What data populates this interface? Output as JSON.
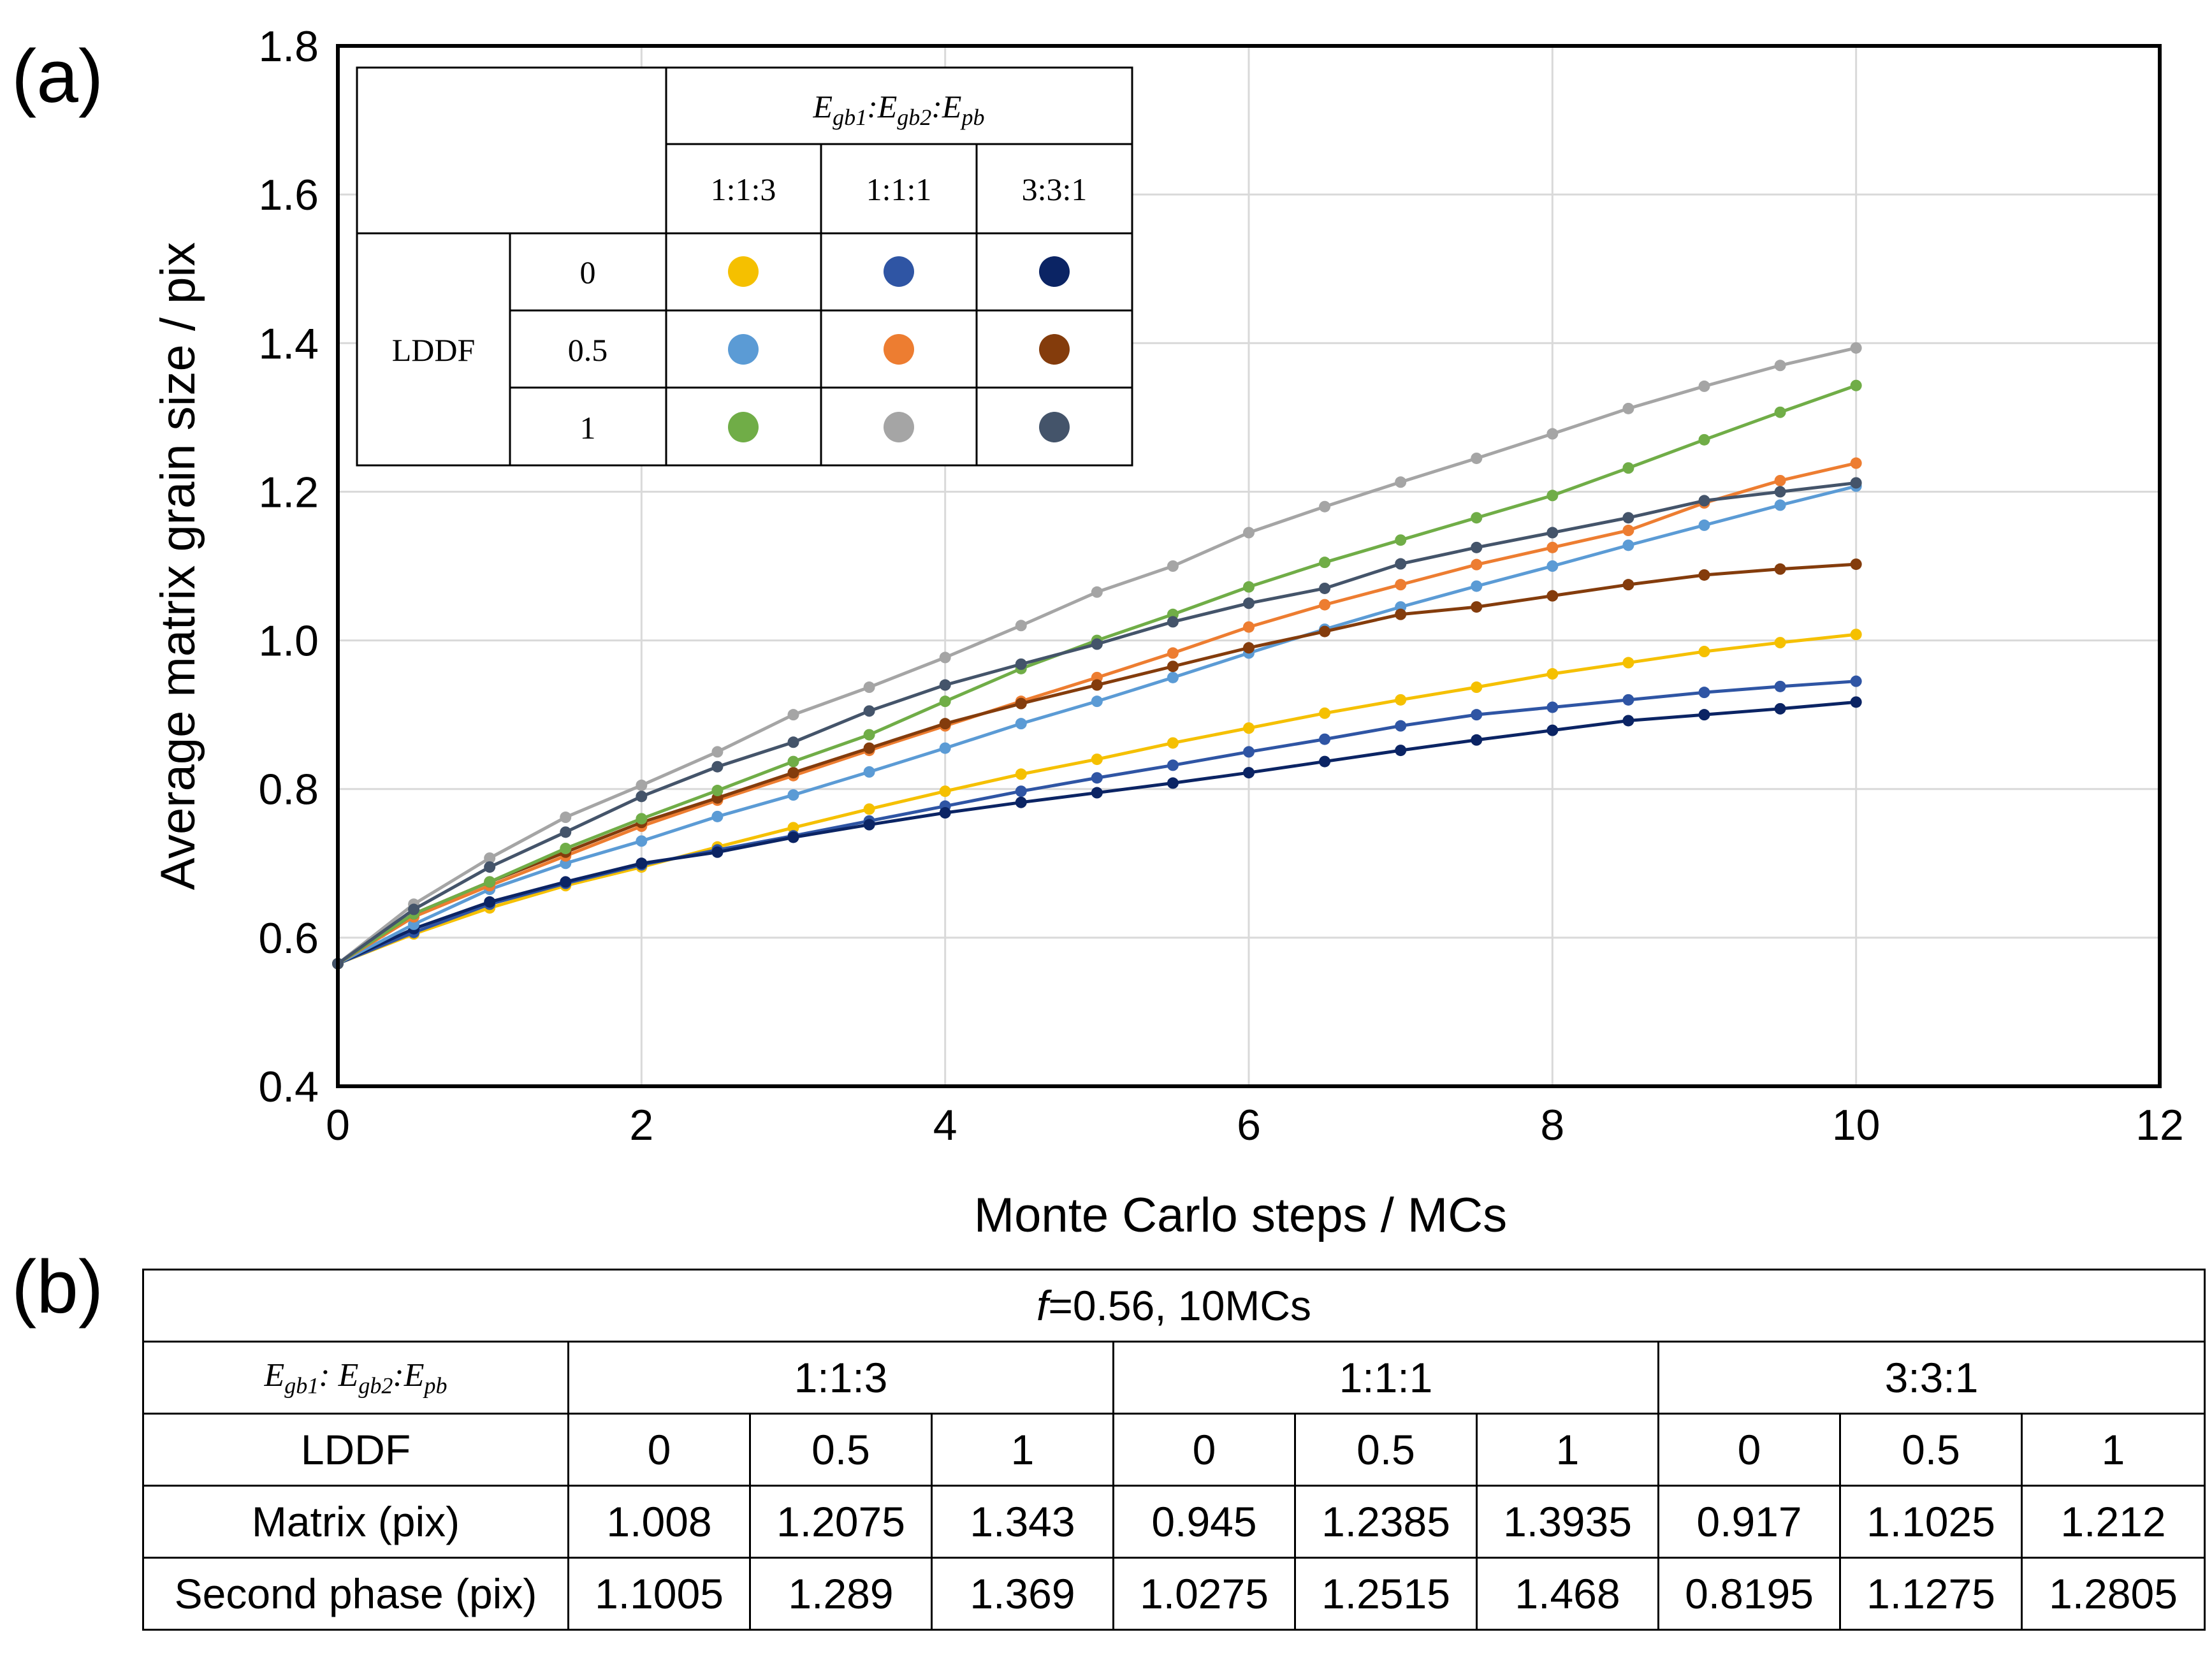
{
  "panel_a_label": "(a)",
  "panel_b_label": "(b)",
  "chart_data": {
    "type": "line",
    "xlabel": "Monte Carlo steps / MCs",
    "ylabel": "Average matrix grain size / pix",
    "xlim": [
      0,
      12
    ],
    "ylim": [
      0.4,
      1.8
    ],
    "xticks": [
      "0",
      "2",
      "4",
      "6",
      "8",
      "10",
      "12"
    ],
    "yticks": [
      "0.4",
      "0.6",
      "0.8",
      "1.0",
      "1.2",
      "1.4",
      "1.6",
      "1.8"
    ],
    "grid": true,
    "x": [
      0,
      0.5,
      1,
      1.5,
      2,
      2.5,
      3,
      3.5,
      4,
      4.5,
      5,
      5.5,
      6,
      6.5,
      7,
      7.5,
      8,
      8.5,
      9,
      9.5,
      10
    ],
    "series": [
      {
        "color": "#f5c000",
        "values": [
          0.565,
          0.605,
          0.64,
          0.67,
          0.695,
          0.722,
          0.748,
          0.773,
          0.797,
          0.82,
          0.84,
          0.862,
          0.882,
          0.902,
          0.92,
          0.937,
          0.955,
          0.97,
          0.985,
          0.997,
          1.008
        ]
      },
      {
        "color": "#2f55a4",
        "values": [
          0.565,
          0.607,
          0.645,
          0.673,
          0.698,
          0.718,
          0.737,
          0.757,
          0.777,
          0.797,
          0.815,
          0.832,
          0.85,
          0.867,
          0.885,
          0.9,
          0.91,
          0.92,
          0.93,
          0.938,
          0.945
        ]
      },
      {
        "color": "#0b2464",
        "values": [
          0.565,
          0.612,
          0.648,
          0.675,
          0.7,
          0.715,
          0.735,
          0.752,
          0.768,
          0.782,
          0.795,
          0.808,
          0.822,
          0.837,
          0.852,
          0.866,
          0.879,
          0.892,
          0.9,
          0.908,
          0.917
        ]
      },
      {
        "color": "#5b9bd5",
        "values": [
          0.565,
          0.618,
          0.665,
          0.7,
          0.73,
          0.763,
          0.792,
          0.823,
          0.855,
          0.888,
          0.918,
          0.95,
          0.983,
          1.015,
          1.045,
          1.073,
          1.1,
          1.128,
          1.155,
          1.182,
          1.2075
        ]
      },
      {
        "color": "#ed7d31",
        "values": [
          0.565,
          0.628,
          0.67,
          0.71,
          0.75,
          0.785,
          0.818,
          0.852,
          0.885,
          0.918,
          0.95,
          0.983,
          1.018,
          1.048,
          1.075,
          1.102,
          1.125,
          1.148,
          1.185,
          1.215,
          1.2385
        ]
      },
      {
        "color": "#843c0c",
        "values": [
          0.565,
          0.632,
          0.675,
          0.715,
          0.755,
          0.788,
          0.822,
          0.855,
          0.888,
          0.915,
          0.94,
          0.965,
          0.99,
          1.012,
          1.035,
          1.045,
          1.06,
          1.075,
          1.088,
          1.096,
          1.1025
        ]
      },
      {
        "color": "#70ad47",
        "values": [
          0.565,
          0.632,
          0.675,
          0.72,
          0.76,
          0.798,
          0.837,
          0.873,
          0.918,
          0.962,
          1.0,
          1.035,
          1.072,
          1.105,
          1.135,
          1.165,
          1.195,
          1.232,
          1.27,
          1.307,
          1.343
        ]
      },
      {
        "color": "#a5a5a5",
        "values": [
          0.565,
          0.645,
          0.707,
          0.762,
          0.805,
          0.85,
          0.9,
          0.937,
          0.977,
          1.02,
          1.065,
          1.1,
          1.145,
          1.18,
          1.213,
          1.245,
          1.278,
          1.312,
          1.342,
          1.37,
          1.3935
        ]
      },
      {
        "color": "#44546a",
        "values": [
          0.565,
          0.638,
          0.695,
          0.742,
          0.79,
          0.83,
          0.863,
          0.905,
          0.94,
          0.968,
          0.995,
          1.025,
          1.05,
          1.07,
          1.103,
          1.125,
          1.145,
          1.165,
          1.188,
          1.2,
          1.212
        ]
      }
    ]
  },
  "legend": {
    "col_title": {
      "main": "E",
      "subs": [
        "gb1",
        "gb2",
        "pb"
      ]
    },
    "col_headers": [
      "1:1:3",
      "1:1:1",
      "3:3:1"
    ],
    "row_title": "LDDF",
    "row_headers": [
      "0",
      "0.5",
      "1"
    ],
    "dot_colors": [
      [
        "#f5c000",
        "#2f55a4",
        "#0b2464"
      ],
      [
        "#5b9bd5",
        "#ed7d31",
        "#843c0c"
      ],
      [
        "#70ad47",
        "#a5a5a5",
        "#44546a"
      ]
    ]
  },
  "table_b": {
    "caption_f": "f",
    "caption_rest": "=0.56, 10MCs",
    "ratio_label": {
      "main": "E",
      "subs": [
        "gb1",
        "gb2",
        "pb"
      ]
    },
    "ratios": [
      "1:1:3",
      "1:1:1",
      "3:3:1"
    ],
    "lddf_label": "LDDF",
    "lddf_values": [
      "0",
      "0.5",
      "1",
      "0",
      "0.5",
      "1",
      "0",
      "0.5",
      "1"
    ],
    "rows": [
      {
        "label": "Matrix (pix)",
        "values": [
          "1.008",
          "1.2075",
          "1.343",
          "0.945",
          "1.2385",
          "1.3935",
          "0.917",
          "1.1025",
          "1.212"
        ]
      },
      {
        "label": "Second phase (pix)",
        "values": [
          "1.1005",
          "1.289",
          "1.369",
          "1.0275",
          "1.2515",
          "1.468",
          "0.8195",
          "1.1275",
          "1.2805"
        ]
      }
    ]
  }
}
